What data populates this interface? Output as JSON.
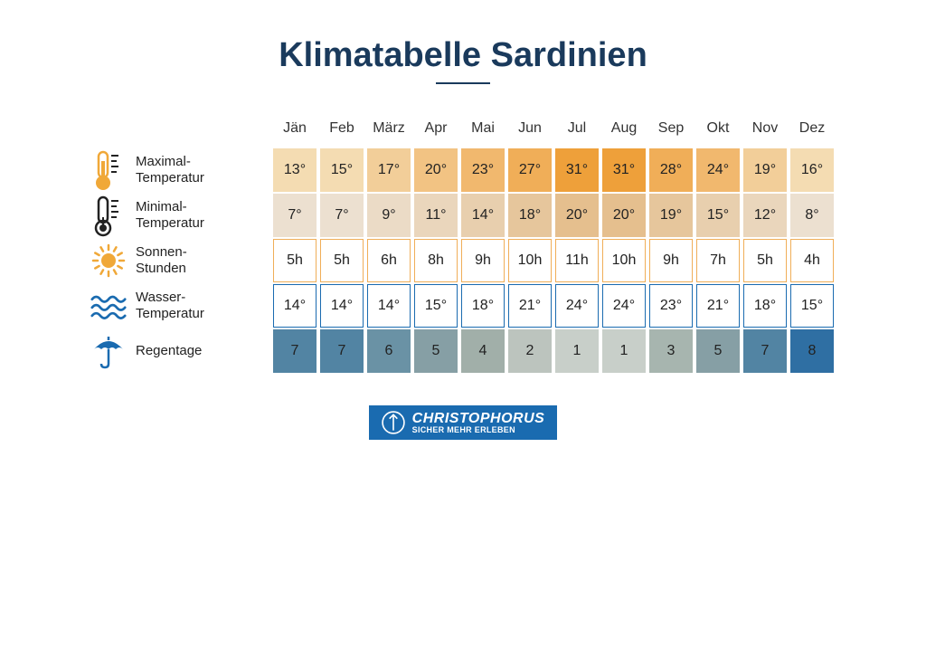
{
  "title": "Klimatabelle Sardinien",
  "title_color": "#1a3a5c",
  "months": [
    "Jän",
    "Feb",
    "März",
    "Apr",
    "Mai",
    "Jun",
    "Jul",
    "Aug",
    "Sep",
    "Okt",
    "Nov",
    "Dez"
  ],
  "rows": [
    {
      "key": "max_temp",
      "label": "Maximal-\nTemperatur",
      "icon": "thermometer-hot",
      "style": "filled",
      "values": [
        "13°",
        "15°",
        "17°",
        "20°",
        "23°",
        "27°",
        "31°",
        "31°",
        "28°",
        "24°",
        "19°",
        "16°"
      ],
      "colors": [
        "#f4dcb2",
        "#f4dcb2",
        "#f2ce99",
        "#f2c383",
        "#f1b86e",
        "#f0ae58",
        "#eea03a",
        "#eea03a",
        "#f0ae58",
        "#f1b86e",
        "#f2ce99",
        "#f4dcb2"
      ]
    },
    {
      "key": "min_temp",
      "label": "Minimal-\nTemperatur",
      "icon": "thermometer-cold",
      "style": "filled",
      "values": [
        "7°",
        "7°",
        "9°",
        "11°",
        "14°",
        "18°",
        "20°",
        "20°",
        "19°",
        "15°",
        "12°",
        "8°"
      ],
      "colors": [
        "#ece0d0",
        "#ece0d0",
        "#ebdbc6",
        "#ead6bc",
        "#e8cfae",
        "#e6c69c",
        "#e5bf8e",
        "#e5bf8e",
        "#e6c69c",
        "#e8cfae",
        "#ead6bc",
        "#ece0d0"
      ]
    },
    {
      "key": "sun_hours",
      "label": "Sonnen-\nStunden",
      "icon": "sun",
      "style": "bordered",
      "border_color": "#f0ae58",
      "values": [
        "5h",
        "5h",
        "6h",
        "8h",
        "9h",
        "10h",
        "11h",
        "10h",
        "9h",
        "7h",
        "5h",
        "4h"
      ]
    },
    {
      "key": "water_temp",
      "label": "Wasser-\nTemperatur",
      "icon": "waves",
      "style": "bordered",
      "border_color": "#1a6bb0",
      "values": [
        "14°",
        "14°",
        "14°",
        "15°",
        "18°",
        "21°",
        "24°",
        "24°",
        "23°",
        "21°",
        "18°",
        "15°"
      ]
    },
    {
      "key": "rain_days",
      "label": "Regentage",
      "icon": "umbrella",
      "style": "filled",
      "values": [
        "7",
        "7",
        "6",
        "5",
        "4",
        "2",
        "1",
        "1",
        "3",
        "5",
        "7",
        "8"
      ],
      "colors": [
        "#5284a3",
        "#5284a3",
        "#6a92a5",
        "#869fa5",
        "#a1afa9",
        "#bcc4be",
        "#c8cfc9",
        "#c8cfc9",
        "#a7b5af",
        "#869fa5",
        "#5284a3",
        "#2f6fa3"
      ]
    }
  ],
  "brand": {
    "name": "CHRISTOPHORUS",
    "tagline": "SICHER MEHR ERLEBEN",
    "bg": "#1a6bb0"
  },
  "icons": {
    "thermometer_hot_color": "#f0a838",
    "thermometer_cold_color": "#222222",
    "sun_color": "#f0a838",
    "waves_color": "#1a6bb0",
    "umbrella_color": "#1a6bb0"
  }
}
